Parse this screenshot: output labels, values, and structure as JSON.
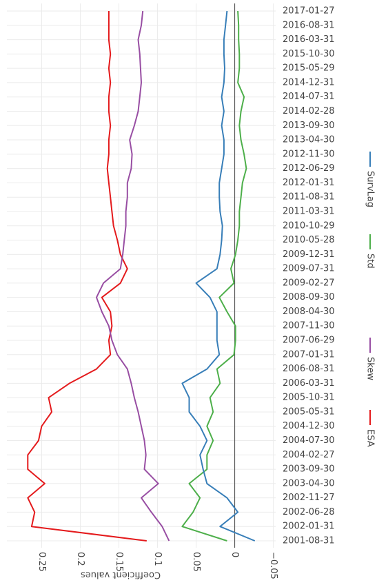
{
  "chart_data": {
    "type": "line",
    "x_title": null,
    "y_title": "Coefficient values",
    "categories": [
      "2001-08-31",
      "2002-01-31",
      "2002-06-28",
      "2002-11-27",
      "2003-04-30",
      "2003-09-30",
      "2004-02-27",
      "2004-07-30",
      "2004-12-30",
      "2005-05-31",
      "2005-10-31",
      "2006-03-31",
      "2006-08-31",
      "2007-01-31",
      "2007-06-29",
      "2007-11-30",
      "2008-04-30",
      "2008-09-30",
      "2009-02-27",
      "2009-07-31",
      "2009-12-31",
      "2010-05-28",
      "2010-10-29",
      "2011-03-31",
      "2011-08-31",
      "2012-01-31",
      "2012-06-29",
      "2012-11-30",
      "2013-04-30",
      "2013-09-30",
      "2014-02-28",
      "2014-07-31",
      "2014-12-31",
      "2015-05-29",
      "2015-10-30",
      "2016-03-31",
      "2016-08-31",
      "2017-01-27"
    ],
    "series": [
      {
        "name": "ESA",
        "color": "#e41a1c",
        "values": [
          0.114,
          0.263,
          0.259,
          0.268,
          0.246,
          0.268,
          0.268,
          0.254,
          0.25,
          0.237,
          0.241,
          0.214,
          0.179,
          0.161,
          0.163,
          0.159,
          0.161,
          0.172,
          0.148,
          0.139,
          0.148,
          0.152,
          0.157,
          0.159,
          0.161,
          0.163,
          0.165,
          0.163,
          0.163,
          0.161,
          0.163,
          0.163,
          0.161,
          0.163,
          0.161,
          0.163,
          0.163,
          0.163
        ]
      },
      {
        "name": "Skew",
        "color": "#984ea3",
        "values": [
          0.085,
          0.094,
          0.108,
          0.121,
          0.099,
          0.117,
          0.115,
          0.117,
          0.121,
          0.125,
          0.13,
          0.134,
          0.139,
          0.152,
          0.159,
          0.163,
          0.172,
          0.179,
          0.17,
          0.148,
          0.145,
          0.143,
          0.141,
          0.141,
          0.139,
          0.139,
          0.134,
          0.133,
          0.136,
          0.13,
          0.125,
          0.123,
          0.121,
          0.122,
          0.123,
          0.125,
          0.121,
          0.119
        ]
      },
      {
        "name": "Std",
        "color": "#4daf4a",
        "values": [
          0.01,
          0.068,
          0.054,
          0.045,
          0.059,
          0.036,
          0.036,
          0.028,
          0.036,
          0.028,
          0.032,
          0.019,
          0.023,
          0.001,
          -0.001,
          -0.001,
          0.01,
          0.02,
          0.001,
          0.005,
          -0.001,
          -0.004,
          -0.006,
          -0.006,
          -0.008,
          -0.01,
          -0.015,
          -0.012,
          -0.008,
          -0.006,
          -0.008,
          -0.012,
          -0.004,
          -0.006,
          -0.006,
          -0.005,
          -0.005,
          -0.004
        ]
      },
      {
        "name": "SurvLag",
        "color": "#377eb8",
        "values": [
          -0.026,
          0.019,
          -0.004,
          0.01,
          0.036,
          0.041,
          0.045,
          0.036,
          0.045,
          0.059,
          0.059,
          0.068,
          0.036,
          0.02,
          0.023,
          0.023,
          0.023,
          0.032,
          0.05,
          0.023,
          0.019,
          0.017,
          0.016,
          0.019,
          0.02,
          0.02,
          0.017,
          0.014,
          0.014,
          0.017,
          0.014,
          0.017,
          0.014,
          0.013,
          0.014,
          0.014,
          0.012,
          0.01
        ]
      }
    ],
    "ylim": [
      -0.053,
      0.295
    ],
    "yticks": [
      {
        "value": -0.05,
        "label": "−0.05"
      },
      0,
      0.05,
      0.1,
      0.15,
      0.2,
      0.25
    ],
    "reversed": true,
    "grid": true,
    "zero_line": true
  }
}
